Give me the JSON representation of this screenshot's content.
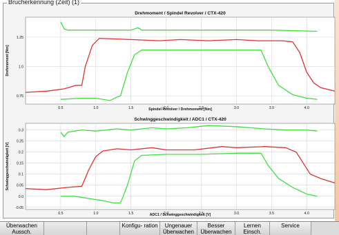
{
  "panel": {
    "title": "Brucherkennung (Zeit) (1)"
  },
  "colors": {
    "red": "#e03030",
    "green": "#3ee03e",
    "plot_bg": "#ffffff",
    "grid": "#cfcfcf"
  },
  "chart_data": [
    {
      "type": "line",
      "title": "Drehmoment / Spindel Revolver / CTX-420",
      "xlabel": "Spindel Revolver / Drehmoment [Nm]",
      "ylabel": "Drehmoment [Nm]",
      "xlim": [
        0.0,
        4.4
      ],
      "ylim": [
        0.68,
        1.42
      ],
      "xticks": [
        "0.5",
        "1.0",
        "1.5",
        "2.0",
        "2.5",
        "3.0",
        "3.5",
        "4.0"
      ],
      "yticks": [
        "0.75",
        "1.0",
        "1.25"
      ],
      "grid": true,
      "series": [
        {
          "color": "red",
          "points": [
            [
              0.0,
              0.78
            ],
            [
              0.3,
              0.79
            ],
            [
              0.55,
              0.81
            ],
            [
              0.72,
              0.84
            ],
            [
              0.8,
              0.84
            ],
            [
              0.85,
              1.0
            ],
            [
              0.95,
              1.18
            ],
            [
              1.05,
              1.24
            ],
            [
              1.5,
              1.23
            ],
            [
              1.9,
              1.22
            ],
            [
              2.2,
              1.23
            ],
            [
              2.6,
              1.22
            ],
            [
              3.0,
              1.23
            ],
            [
              3.3,
              1.22
            ],
            [
              3.65,
              1.22
            ],
            [
              3.8,
              1.21
            ],
            [
              3.9,
              1.12
            ],
            [
              4.0,
              0.95
            ],
            [
              4.1,
              0.86
            ],
            [
              4.2,
              0.82
            ],
            [
              4.4,
              0.79
            ]
          ]
        },
        {
          "color": "green",
          "points": [
            [
              0.5,
              1.38
            ],
            [
              0.55,
              1.32
            ],
            [
              0.6,
              1.31
            ],
            [
              1.0,
              1.31
            ],
            [
              1.5,
              1.31
            ],
            [
              1.6,
              1.33
            ],
            [
              1.65,
              1.31
            ],
            [
              2.5,
              1.31
            ],
            [
              3.0,
              1.31
            ],
            [
              3.5,
              1.31
            ],
            [
              4.15,
              1.3
            ]
          ]
        },
        {
          "color": "green",
          "points": [
            [
              0.5,
              0.72
            ],
            [
              0.8,
              0.73
            ],
            [
              1.0,
              0.73
            ],
            [
              1.2,
              0.71
            ],
            [
              1.3,
              0.74
            ],
            [
              1.35,
              0.75
            ],
            [
              1.45,
              0.95
            ],
            [
              1.55,
              1.1
            ],
            [
              1.65,
              1.14
            ],
            [
              2.0,
              1.14
            ],
            [
              2.5,
              1.14
            ],
            [
              3.0,
              1.14
            ],
            [
              3.35,
              1.14
            ],
            [
              3.45,
              1.0
            ],
            [
              3.6,
              0.84
            ],
            [
              3.8,
              0.76
            ],
            [
              4.0,
              0.73
            ],
            [
              4.15,
              0.72
            ]
          ]
        }
      ]
    },
    {
      "type": "line",
      "title": "Schwinggeschwindigkeit / ADC1 / CTX-420",
      "xlabel": "ADC1 / Schwinggeschwindigkeit [V]",
      "ylabel": "Schwinggeschwindigkeit [V]",
      "xlim": [
        0.0,
        4.4
      ],
      "ylim": [
        -0.06,
        0.33
      ],
      "xticks": [
        "0.5",
        "1.0",
        "1.5",
        "2.0",
        "2.5",
        "3.0",
        "3.5",
        "4.0"
      ],
      "yticks": [
        "-0.05",
        "0.0",
        "0.05",
        "0.1",
        "0.15",
        "0.2",
        "0.25",
        "0.3"
      ],
      "grid": true,
      "series": [
        {
          "color": "red",
          "points": [
            [
              0.0,
              0.035
            ],
            [
              0.3,
              0.03
            ],
            [
              0.6,
              0.04
            ],
            [
              0.8,
              0.045
            ],
            [
              0.9,
              0.12
            ],
            [
              1.0,
              0.18
            ],
            [
              1.1,
              0.205
            ],
            [
              1.3,
              0.215
            ],
            [
              1.5,
              0.21
            ],
            [
              1.8,
              0.22
            ],
            [
              2.0,
              0.21
            ],
            [
              2.4,
              0.21
            ],
            [
              2.8,
              0.225
            ],
            [
              3.0,
              0.22
            ],
            [
              3.4,
              0.225
            ],
            [
              3.7,
              0.22
            ],
            [
              3.85,
              0.2
            ],
            [
              3.95,
              0.15
            ],
            [
              4.05,
              0.1
            ],
            [
              4.2,
              0.08
            ],
            [
              4.4,
              0.06
            ]
          ]
        },
        {
          "color": "green",
          "points": [
            [
              0.5,
              0.29
            ],
            [
              0.55,
              0.27
            ],
            [
              0.6,
              0.29
            ],
            [
              0.8,
              0.3
            ],
            [
              1.0,
              0.295
            ],
            [
              1.3,
              0.305
            ],
            [
              1.5,
              0.3
            ],
            [
              1.8,
              0.31
            ],
            [
              2.0,
              0.305
            ],
            [
              2.3,
              0.31
            ],
            [
              2.6,
              0.32
            ],
            [
              3.0,
              0.315
            ],
            [
              3.4,
              0.305
            ],
            [
              3.7,
              0.3
            ],
            [
              4.0,
              0.3
            ],
            [
              4.15,
              0.295
            ]
          ]
        },
        {
          "color": "green",
          "points": [
            [
              0.5,
              0.0
            ],
            [
              0.7,
              0.0
            ],
            [
              0.9,
              -0.01
            ],
            [
              1.1,
              -0.02
            ],
            [
              1.25,
              -0.03
            ],
            [
              1.35,
              -0.03
            ],
            [
              1.45,
              0.05
            ],
            [
              1.55,
              0.16
            ],
            [
              1.65,
              0.185
            ],
            [
              2.0,
              0.19
            ],
            [
              2.5,
              0.19
            ],
            [
              3.0,
              0.195
            ],
            [
              3.35,
              0.195
            ],
            [
              3.45,
              0.14
            ],
            [
              3.6,
              0.08
            ],
            [
              3.8,
              0.04
            ],
            [
              4.0,
              0.01
            ],
            [
              4.15,
              0.0
            ]
          ]
        }
      ]
    }
  ],
  "toolbar": [
    {
      "label": "Überwachen Aussch.",
      "name": "tb-ueberwachen-aussch-button"
    },
    {
      "label": "",
      "name": "tb-empty-1-button"
    },
    {
      "label": "",
      "name": "tb-empty-2-button"
    },
    {
      "label": "Konfigu- ration",
      "name": "tb-konfiguration-button"
    },
    {
      "label": "Ungenauer Überwachen",
      "name": "tb-ungenauer-ueberwachen-button"
    },
    {
      "label": "Besser Überwachen",
      "name": "tb-besser-ueberwachen-button"
    },
    {
      "label": "Lernen Einsch.",
      "name": "tb-lernen-einsch-button"
    },
    {
      "label": "Service",
      "name": "tb-service-button"
    }
  ]
}
